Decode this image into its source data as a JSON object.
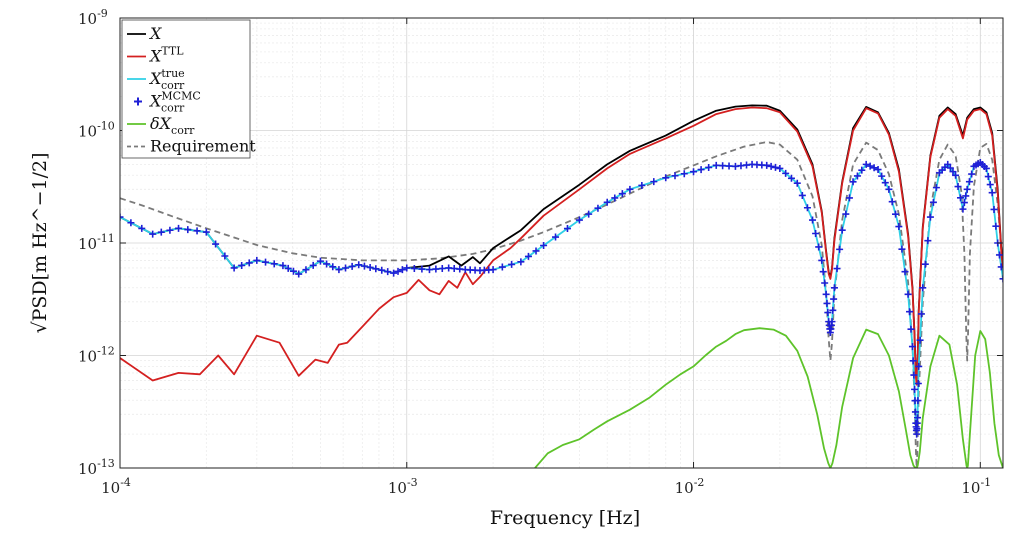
{
  "chart_data": {
    "type": "line",
    "xlabel": "Frequency [Hz]",
    "ylabel": "√PSD[m Hz^−1/2]",
    "x_scale": "log",
    "y_scale": "log",
    "xlim": [
      0.0001,
      0.12
    ],
    "ylim": [
      1e-13,
      1e-09
    ],
    "grid": true,
    "legend_position": "top-left",
    "x_ticks": [
      {
        "value": 0.0001,
        "base": "10",
        "exp": "-4"
      },
      {
        "value": 0.001,
        "base": "10",
        "exp": "-3"
      },
      {
        "value": 0.01,
        "base": "10",
        "exp": "-2"
      },
      {
        "value": 0.1,
        "base": "10",
        "exp": "-1"
      }
    ],
    "y_ticks": [
      {
        "value": 1e-13,
        "base": "10",
        "exp": "-13"
      },
      {
        "value": 1e-12,
        "base": "10",
        "exp": "-12"
      },
      {
        "value": 1e-11,
        "base": "10",
        "exp": "-11"
      },
      {
        "value": 1e-10,
        "base": "10",
        "exp": "-10"
      },
      {
        "value": 1e-09,
        "base": "10",
        "exp": "-9"
      }
    ],
    "series": [
      {
        "name": "X",
        "name_main": "X",
        "name_sup": "",
        "name_sub": "",
        "color": "#000000",
        "style": "solid",
        "x": [
          0.0001,
          0.00013,
          0.00016,
          0.0002,
          0.00025,
          0.0003,
          0.00037,
          0.00042,
          0.0005,
          0.00058,
          0.00068,
          0.00078,
          0.0009,
          0.001,
          0.0012,
          0.0014,
          0.00155,
          0.0017,
          0.0018,
          0.002,
          0.0025,
          0.003,
          0.004,
          0.005,
          0.006,
          0.008,
          0.01,
          0.012,
          0.014,
          0.016,
          0.018,
          0.02,
          0.023,
          0.026,
          0.028,
          0.029,
          0.0296,
          0.03,
          0.0304,
          0.031,
          0.033,
          0.036,
          0.04,
          0.044,
          0.048,
          0.052,
          0.056,
          0.058,
          0.059,
          0.0596,
          0.06,
          0.0604,
          0.061,
          0.063,
          0.067,
          0.072,
          0.077,
          0.082,
          0.087,
          0.09,
          0.095,
          0.1,
          0.105,
          0.11,
          0.115,
          0.12
        ],
        "y": [
          1.7e-11,
          1.2e-11,
          1.35e-11,
          1.25e-11,
          6e-12,
          7e-12,
          6.3e-12,
          5.3e-12,
          6.9e-12,
          5.8e-12,
          6.4e-12,
          5.9e-12,
          5.4e-12,
          6e-12,
          6.3e-12,
          7.6e-12,
          6.3e-12,
          7.5e-12,
          6.6e-12,
          9e-12,
          1.3e-11,
          2e-11,
          3.3e-11,
          5e-11,
          6.6e-11,
          9e-11,
          1.22e-10,
          1.5e-10,
          1.63e-10,
          1.67e-10,
          1.66e-10,
          1.5e-10,
          1.02e-10,
          5e-11,
          1.9e-11,
          8.5e-12,
          5.5e-12,
          5e-12,
          6e-12,
          1.1e-11,
          3.5e-11,
          1.05e-10,
          1.62e-10,
          1.45e-10,
          9.5e-11,
          4.5e-11,
          1.2e-11,
          4e-12,
          1.5e-12,
          7e-13,
          6e-13,
          8e-13,
          2.5e-12,
          1.4e-11,
          6e-11,
          1.35e-10,
          1.6e-10,
          1.4e-10,
          9e-11,
          1.3e-10,
          1.55e-10,
          1.6e-10,
          1.45e-10,
          9.5e-11,
          3e-11,
          5e-12
        ]
      },
      {
        "name": "X TTL",
        "name_main": "X",
        "name_sup": "TTL",
        "name_sub": "",
        "color": "#d42020",
        "style": "solid",
        "x": [
          0.0001,
          0.00013,
          0.00016,
          0.00019,
          0.00022,
          0.00025,
          0.0003,
          0.00036,
          0.00042,
          0.00048,
          0.00053,
          0.00058,
          0.00062,
          0.0007,
          0.0008,
          0.0009,
          0.001,
          0.0011,
          0.0012,
          0.0013,
          0.0014,
          0.0015,
          0.0016,
          0.0017,
          0.0018,
          0.002,
          0.0023,
          0.0025,
          0.003,
          0.004,
          0.005,
          0.006,
          0.008,
          0.01,
          0.012,
          0.014,
          0.016,
          0.018,
          0.02,
          0.023,
          0.026,
          0.028,
          0.029,
          0.0296,
          0.03,
          0.0304,
          0.031,
          0.033,
          0.036,
          0.04,
          0.044,
          0.048,
          0.052,
          0.056,
          0.058,
          0.059,
          0.0596,
          0.06,
          0.0604,
          0.061,
          0.063,
          0.067,
          0.072,
          0.077,
          0.082,
          0.087,
          0.09,
          0.095,
          0.1,
          0.105,
          0.11,
          0.115,
          0.12
        ],
        "y": [
          9.5e-13,
          6e-13,
          7e-13,
          6.8e-13,
          1e-12,
          6.8e-13,
          1.5e-12,
          1.3e-12,
          6.6e-13,
          9.2e-13,
          8.6e-13,
          1.25e-12,
          1.3e-12,
          1.8e-12,
          2.6e-12,
          3.3e-12,
          3.6e-12,
          4.7e-12,
          3.8e-12,
          3.5e-12,
          4.6e-12,
          4e-12,
          5.5e-12,
          4.3e-12,
          5e-12,
          7e-12,
          9e-12,
          1.1e-11,
          1.75e-11,
          3e-11,
          4.6e-11,
          6.2e-11,
          8.5e-11,
          1.1e-10,
          1.4e-10,
          1.55e-10,
          1.6e-10,
          1.58e-10,
          1.45e-10,
          9.8e-11,
          4.8e-11,
          1.85e-11,
          8.2e-12,
          5.3e-12,
          4.8e-12,
          5.8e-12,
          1.05e-11,
          3.4e-11,
          1e-10,
          1.58e-10,
          1.42e-10,
          9.2e-11,
          4.3e-11,
          1.15e-11,
          3.8e-12,
          1.4e-12,
          6.5e-13,
          5.5e-13,
          7.5e-13,
          2.4e-12,
          1.35e-11,
          5.8e-11,
          1.3e-10,
          1.55e-10,
          1.35e-10,
          8.5e-11,
          1.25e-10,
          1.5e-10,
          1.55e-10,
          1.4e-10,
          9e-11,
          2.8e-11,
          4.8e-12
        ]
      },
      {
        "name": "X corr true",
        "name_main": "X",
        "name_sup": "true",
        "name_sub": "corr",
        "color": "#2fd0e6",
        "style": "solid",
        "x": [
          0.0001,
          0.00013,
          0.00016,
          0.0002,
          0.00025,
          0.0003,
          0.00037,
          0.00042,
          0.0005,
          0.00058,
          0.00068,
          0.00078,
          0.0009,
          0.001,
          0.0012,
          0.0014,
          0.0016,
          0.0018,
          0.002,
          0.0025,
          0.003,
          0.004,
          0.005,
          0.006,
          0.008,
          0.01,
          0.012,
          0.014,
          0.016,
          0.018,
          0.02,
          0.023,
          0.026,
          0.028,
          0.029,
          0.0296,
          0.03,
          0.0304,
          0.031,
          0.033,
          0.036,
          0.04,
          0.044,
          0.048,
          0.052,
          0.056,
          0.058,
          0.059,
          0.0596,
          0.06,
          0.0604,
          0.061,
          0.063,
          0.067,
          0.072,
          0.077,
          0.082,
          0.087,
          0.09,
          0.095,
          0.1,
          0.105,
          0.11,
          0.115,
          0.12
        ],
        "y": [
          1.7e-11,
          1.2e-11,
          1.35e-11,
          1.25e-11,
          6e-12,
          7e-12,
          6.3e-12,
          5.3e-12,
          6.9e-12,
          5.8e-12,
          6.4e-12,
          5.9e-12,
          5.4e-12,
          6e-12,
          5.8e-12,
          6e-12,
          5.8e-12,
          5.7e-12,
          5.8e-12,
          6.8e-12,
          9.5e-12,
          1.6e-11,
          2.3e-11,
          3e-11,
          3.8e-11,
          4.3e-11,
          4.9e-11,
          4.8e-11,
          5e-11,
          4.9e-11,
          4.6e-11,
          3.4e-11,
          1.6e-11,
          7e-12,
          3.5e-12,
          2e-12,
          1.6e-12,
          2e-12,
          4e-12,
          1.3e-11,
          3.5e-11,
          5e-11,
          4.5e-11,
          3e-11,
          1.4e-11,
          3.5e-12,
          1.2e-12,
          5e-13,
          2.5e-13,
          2e-13,
          2.8e-13,
          8e-13,
          4e-12,
          1.7e-11,
          4.2e-11,
          5e-11,
          4e-11,
          2e-11,
          3e-11,
          4.8e-11,
          5.2e-11,
          4.6e-11,
          2.8e-11,
          1e-11,
          4.8e-12
        ]
      },
      {
        "name": "X corr MCMC",
        "name_main": "X",
        "name_sup": "MCMC",
        "name_sub": "corr",
        "color": "#1f1fd6",
        "style": "markers",
        "x": [
          0.0001,
          0.00013,
          0.00016,
          0.0002,
          0.00025,
          0.0003,
          0.00037,
          0.00042,
          0.0005,
          0.00058,
          0.00068,
          0.00078,
          0.0009,
          0.001,
          0.0012,
          0.0014,
          0.0016,
          0.0018,
          0.002,
          0.0025,
          0.003,
          0.004,
          0.005,
          0.006,
          0.008,
          0.01,
          0.012,
          0.014,
          0.016,
          0.018,
          0.02,
          0.023,
          0.026,
          0.028,
          0.029,
          0.0296,
          0.03,
          0.0304,
          0.031,
          0.033,
          0.036,
          0.04,
          0.044,
          0.048,
          0.052,
          0.056,
          0.058,
          0.059,
          0.0596,
          0.06,
          0.0604,
          0.061,
          0.063,
          0.067,
          0.072,
          0.077,
          0.082,
          0.087,
          0.09,
          0.095,
          0.1,
          0.105,
          0.11,
          0.115,
          0.12
        ],
        "y": [
          1.7e-11,
          1.2e-11,
          1.35e-11,
          1.25e-11,
          6e-12,
          7e-12,
          6.3e-12,
          5.3e-12,
          6.9e-12,
          5.8e-12,
          6.4e-12,
          5.9e-12,
          5.4e-12,
          6e-12,
          5.8e-12,
          6e-12,
          5.8e-12,
          5.7e-12,
          5.8e-12,
          6.8e-12,
          9.5e-12,
          1.6e-11,
          2.3e-11,
          3e-11,
          3.8e-11,
          4.3e-11,
          4.9e-11,
          4.8e-11,
          5e-11,
          4.9e-11,
          4.6e-11,
          3.4e-11,
          1.6e-11,
          7e-12,
          3.5e-12,
          2e-12,
          1.6e-12,
          2e-12,
          4e-12,
          1.3e-11,
          3.5e-11,
          5e-11,
          4.5e-11,
          3e-11,
          1.4e-11,
          3.5e-12,
          1.2e-12,
          5e-13,
          2.5e-13,
          2e-13,
          2.8e-13,
          8e-13,
          4e-12,
          1.7e-11,
          4.2e-11,
          5e-11,
          4e-11,
          2e-11,
          3e-11,
          4.8e-11,
          5.2e-11,
          4.6e-11,
          2.8e-11,
          1e-11,
          4.8e-12
        ]
      },
      {
        "name": "δX corr",
        "name_main": "δX",
        "name_sup": "",
        "name_sub": "corr",
        "color": "#5ec32a",
        "style": "solid",
        "x": [
          0.0028,
          0.0031,
          0.0035,
          0.004,
          0.0045,
          0.005,
          0.006,
          0.007,
          0.008,
          0.009,
          0.01,
          0.011,
          0.012,
          0.013,
          0.014,
          0.015,
          0.017,
          0.019,
          0.021,
          0.023,
          0.025,
          0.027,
          0.0285,
          0.0295,
          0.03,
          0.0305,
          0.0315,
          0.033,
          0.036,
          0.04,
          0.044,
          0.048,
          0.052,
          0.055,
          0.057,
          0.0585,
          0.0595,
          0.06,
          0.0605,
          0.0615,
          0.063,
          0.067,
          0.072,
          0.078,
          0.083,
          0.087,
          0.0895,
          0.09,
          0.0905,
          0.092,
          0.096,
          0.1,
          0.104,
          0.108,
          0.112,
          0.116,
          0.12
        ],
        "y": [
          1e-13,
          1.35e-13,
          1.6e-13,
          1.8e-13,
          2.2e-13,
          2.6e-13,
          3.3e-13,
          4.2e-13,
          5.5e-13,
          6.8e-13,
          8e-13,
          1e-12,
          1.2e-12,
          1.35e-12,
          1.55e-12,
          1.68e-12,
          1.75e-12,
          1.7e-12,
          1.5e-12,
          1.1e-12,
          6.5e-13,
          3e-13,
          1.5e-13,
          1.1e-13,
          1e-13,
          1.1e-13,
          1.6e-13,
          3.5e-13,
          9.5e-13,
          1.7e-12,
          1.55e-12,
          1e-12,
          4.8e-13,
          2.2e-13,
          1.3e-13,
          1.05e-13,
          1e-13,
          1e-13,
          1.05e-13,
          1.4e-13,
          2.8e-13,
          8e-13,
          1.5e-12,
          1.25e-12,
          5.5e-13,
          1.8e-13,
          1.05e-13,
          1e-13,
          1.05e-13,
          2e-13,
          1e-12,
          1.65e-12,
          1.4e-12,
          7e-13,
          2.5e-13,
          1.3e-13,
          1e-13
        ]
      },
      {
        "name": "Requirement",
        "name_main": "Requirement",
        "name_sup": "",
        "name_sub": "",
        "color": "#7a7a7a",
        "style": "dashed",
        "x": [
          0.0001,
          0.00012,
          0.00015,
          0.0002,
          0.00025,
          0.0003,
          0.0004,
          0.0005,
          0.0007,
          0.001,
          0.0013,
          0.0017,
          0.002,
          0.0025,
          0.003,
          0.004,
          0.005,
          0.006,
          0.008,
          0.01,
          0.012,
          0.015,
          0.018,
          0.02,
          0.023,
          0.026,
          0.028,
          0.029,
          0.0296,
          0.03,
          0.0304,
          0.031,
          0.033,
          0.036,
          0.04,
          0.044,
          0.048,
          0.052,
          0.056,
          0.058,
          0.059,
          0.0596,
          0.06,
          0.0604,
          0.061,
          0.063,
          0.067,
          0.072,
          0.077,
          0.082,
          0.086,
          0.088,
          0.0894,
          0.09,
          0.0906,
          0.092,
          0.095,
          0.1,
          0.105,
          0.11,
          0.115,
          0.12
        ],
        "y": [
          2.5e-11,
          2.15e-11,
          1.75e-11,
          1.35e-11,
          1.12e-11,
          9.6e-12,
          8.1e-12,
          7.4e-12,
          7e-12,
          7e-12,
          7.3e-12,
          8e-12,
          8.8e-12,
          1.05e-11,
          1.25e-11,
          1.7e-11,
          2.2e-11,
          2.75e-11,
          3.9e-11,
          4.9e-11,
          5.9e-11,
          7.2e-11,
          7.9e-11,
          7.5e-11,
          5.5e-11,
          2.6e-11,
          9.5e-12,
          3.6e-12,
          1.4e-12,
          9e-13,
          1.3e-12,
          3.5e-12,
          1.6e-11,
          5e-11,
          7.8e-11,
          6.7e-11,
          4.1e-11,
          1.8e-11,
          4.5e-12,
          1.2e-12,
          4e-13,
          1.5e-13,
          1e-13,
          1.5e-13,
          4.5e-13,
          3e-12,
          2e-11,
          5.5e-11,
          7.5e-11,
          6e-11,
          2.8e-11,
          8e-12,
          1.5e-12,
          9e-13,
          1.5e-12,
          8e-12,
          3.2e-11,
          7e-11,
          7.6e-11,
          5.5e-11,
          2.2e-11,
          6e-12
        ]
      }
    ]
  }
}
